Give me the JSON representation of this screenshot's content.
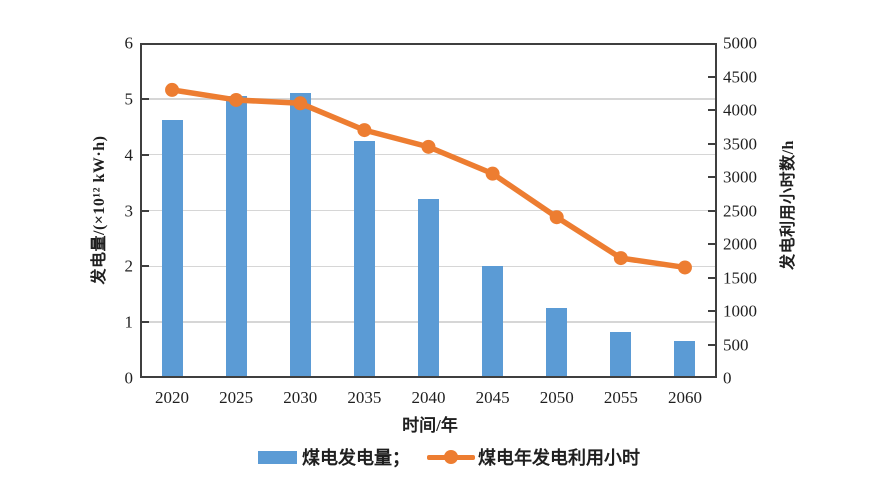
{
  "figure": {
    "background": "#ffffff",
    "text_color": "#1f1f1f",
    "axis_color": "#3f3f3f",
    "gridline_color": "#d6d6d6"
  },
  "legend": {
    "bar_label": "煤电发电量；",
    "line_label": "煤电年发电利用小时"
  },
  "chart_data": {
    "type": "combo",
    "categories": [
      "2020",
      "2025",
      "2030",
      "2035",
      "2040",
      "2045",
      "2050",
      "2055",
      "2060"
    ],
    "series": [
      {
        "name": "煤电发电量",
        "type": "bar",
        "axis": "left",
        "color": "#5B9BD5",
        "values": [
          4.63,
          5.05,
          5.1,
          4.25,
          3.2,
          2.0,
          1.25,
          0.83,
          0.67
        ]
      },
      {
        "name": "煤电年发电利用小时",
        "type": "line",
        "axis": "right",
        "color": "#ED7D31",
        "marker": "circle",
        "values": [
          4300,
          4150,
          4100,
          3700,
          3450,
          3050,
          2400,
          1790,
          1650
        ]
      }
    ],
    "left_axis": {
      "label": "发电量/(×10¹² kW·h)",
      "min": 0,
      "max": 6,
      "tick_step": 1
    },
    "right_axis": {
      "label": "发电利用小时数/h",
      "min": 0,
      "max": 5000,
      "tick_step": 500
    },
    "xlabel": "时间/年",
    "grid": "horizontal",
    "legend_position": "bottom-center"
  }
}
